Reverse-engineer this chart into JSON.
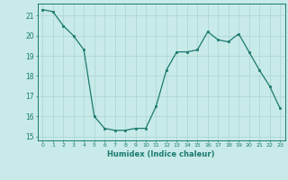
{
  "x": [
    0,
    1,
    2,
    3,
    4,
    5,
    6,
    7,
    8,
    9,
    10,
    11,
    12,
    13,
    14,
    15,
    16,
    17,
    18,
    19,
    20,
    21,
    22,
    23
  ],
  "y": [
    21.3,
    21.2,
    20.5,
    20.0,
    19.3,
    16.0,
    15.4,
    15.3,
    15.3,
    15.4,
    15.4,
    16.5,
    18.3,
    19.2,
    19.2,
    19.3,
    20.2,
    19.8,
    19.7,
    20.1,
    19.2,
    18.3,
    17.5,
    16.4
  ],
  "xlabel": "Humidex (Indice chaleur)",
  "ylim": [
    14.8,
    21.6
  ],
  "xlim": [
    -0.5,
    23.5
  ],
  "yticks": [
    15,
    16,
    17,
    18,
    19,
    20,
    21
  ],
  "xticks": [
    0,
    1,
    2,
    3,
    4,
    5,
    6,
    7,
    8,
    9,
    10,
    11,
    12,
    13,
    14,
    15,
    16,
    17,
    18,
    19,
    20,
    21,
    22,
    23
  ],
  "line_color": "#1a7a6e",
  "marker_color": "#1a7a6e",
  "bg_color": "#c8eae8",
  "grid_color": "#b0d8d4",
  "label_color": "#1a7a6e",
  "tick_color": "#1a7a6e",
  "spine_color": "#1a7a6e"
}
